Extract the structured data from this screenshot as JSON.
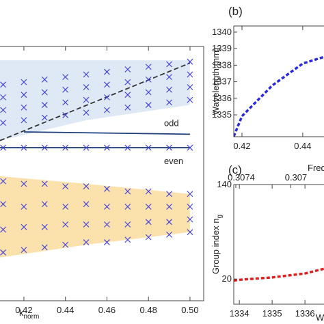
{
  "chart_data": [
    {
      "type": "scatter",
      "x_label": {
        "main": "k",
        "sub": "norm"
      },
      "xlim": [
        0.4085,
        0.5066
      ],
      "ylim": [
        0,
        1
      ],
      "xticks": [
        0.42,
        0.44,
        0.46,
        0.48,
        {
          "value": 0.5,
          "label": "0.50"
        }
      ],
      "texts": [
        "odd",
        "even"
      ],
      "bands": [
        {
          "color": "#dfe9f5",
          "x": [
            0.4085,
            0.45,
            0.5
          ],
          "upper": [
            0.946,
            0.946,
            0.946
          ],
          "lower": [
            0.63,
            0.71,
            0.77
          ]
        },
        {
          "color": "#fbe2ad",
          "x": [
            0.4085,
            0.45,
            0.5
          ],
          "upper": [
            0.49,
            0.46,
            0.42
          ],
          "lower": [
            0.17,
            0.22,
            0.27
          ]
        }
      ],
      "lines": [
        {
          "color": "#333333",
          "dash": true,
          "x": [
            0.4085,
            0.5
          ],
          "values": [
            0.63,
            0.935
          ]
        },
        {
          "color": "#1f3f7a",
          "dash": false,
          "x": [
            0.42,
            0.5
          ],
          "values": [
            0.664,
            0.655
          ]
        },
        {
          "color": "#1f3f7a",
          "dash": false,
          "x": [
            0.4085,
            0.5
          ],
          "values": [
            0.602,
            0.602
          ]
        }
      ],
      "series": [
        {
          "color": "#3b3be0",
          "x": [
            0.41,
            0.41,
            0.41,
            0.41,
            0.42,
            0.42,
            0.42,
            0.42,
            0.43,
            0.43,
            0.43,
            0.43,
            0.44,
            0.44,
            0.44,
            0.44,
            0.45,
            0.45,
            0.45,
            0.45,
            0.46,
            0.46,
            0.46,
            0.46,
            0.47,
            0.47,
            0.47,
            0.47,
            0.48,
            0.48,
            0.48,
            0.48,
            0.49,
            0.49,
            0.49,
            0.49,
            0.5,
            0.5,
            0.5,
            0.5
          ],
          "values": [
            0.7,
            0.75,
            0.8,
            0.85,
            0.71,
            0.76,
            0.81,
            0.86,
            0.72,
            0.77,
            0.82,
            0.87,
            0.73,
            0.78,
            0.83,
            0.88,
            0.74,
            0.79,
            0.84,
            0.89,
            0.75,
            0.8,
            0.85,
            0.9,
            0.76,
            0.81,
            0.86,
            0.91,
            0.77,
            0.82,
            0.87,
            0.92,
            0.78,
            0.83,
            0.88,
            0.93,
            0.79,
            0.84,
            0.89,
            0.94
          ]
        },
        {
          "color": "#3b3be0",
          "x": [
            0.41,
            0.41,
            0.41,
            0.41,
            0.42,
            0.42,
            0.42,
            0.42,
            0.43,
            0.43,
            0.43,
            0.43,
            0.44,
            0.44,
            0.44,
            0.44,
            0.45,
            0.45,
            0.45,
            0.45,
            0.46,
            0.46,
            0.46,
            0.46,
            0.47,
            0.47,
            0.47,
            0.47,
            0.48,
            0.48,
            0.48,
            0.48,
            0.49,
            0.49,
            0.49,
            0.49,
            0.5,
            0.5,
            0.5,
            0.5
          ],
          "values": [
            0.19,
            0.28,
            0.38,
            0.47,
            0.2,
            0.29,
            0.37,
            0.46,
            0.21,
            0.29,
            0.38,
            0.46,
            0.22,
            0.3,
            0.37,
            0.45,
            0.23,
            0.3,
            0.38,
            0.45,
            0.23,
            0.3,
            0.37,
            0.44,
            0.24,
            0.3,
            0.37,
            0.43,
            0.25,
            0.31,
            0.37,
            0.43,
            0.26,
            0.31,
            0.37,
            0.42,
            0.27,
            0.32,
            0.37,
            0.42
          ]
        },
        {
          "color": "#3b3be0",
          "x": [
            0.41,
            0.42,
            0.43,
            0.44,
            0.45,
            0.46,
            0.47,
            0.48,
            0.49,
            0.5
          ],
          "values": [
            0.602,
            0.602,
            0.602,
            0.602,
            0.602,
            0.602,
            0.602,
            0.602,
            0.602,
            0.602
          ]
        }
      ]
    },
    {
      "type": "line",
      "panel_label": "(b)",
      "y_label": {
        "main": "Wavelength (nm)"
      },
      "xlim": [
        0.4173,
        0.447
      ],
      "ylim": [
        1333.68,
        1340.37
      ],
      "xticks": [
        0.42,
        0.44
      ],
      "yticks": [
        1335,
        1336,
        1337,
        1338,
        1339,
        1340
      ],
      "series": [
        {
          "color": "#2a2ae0",
          "x": [
            0.4173,
            0.42,
            0.43,
            0.44,
            0.447
          ],
          "values": [
            1333.7,
            1334.92,
            1336.78,
            1338.1,
            1338.5
          ]
        }
      ]
    },
    {
      "type": "line",
      "panel_label": "(c)",
      "y_label": {
        "main": "Group index n",
        "sub": "g"
      },
      "x_label": {
        "main": "W"
      },
      "x2_label": {
        "main": "Freq"
      },
      "xlim": [
        1333.83,
        1336.58
      ],
      "ylim": [
        -12,
        140
      ],
      "x2lim": [
        0.307415,
        0.306755
      ],
      "xticks": [
        1334,
        1335,
        1336
      ],
      "yticks": [
        20,
        140
      ],
      "x2ticks": [
        0.3074,
        0.307
      ],
      "series": [
        {
          "color": "#e02020",
          "x": [
            1333.83,
            1334,
            1335,
            1336,
            1336.58
          ],
          "values": [
            18,
            19,
            22,
            27,
            33
          ]
        }
      ]
    }
  ]
}
